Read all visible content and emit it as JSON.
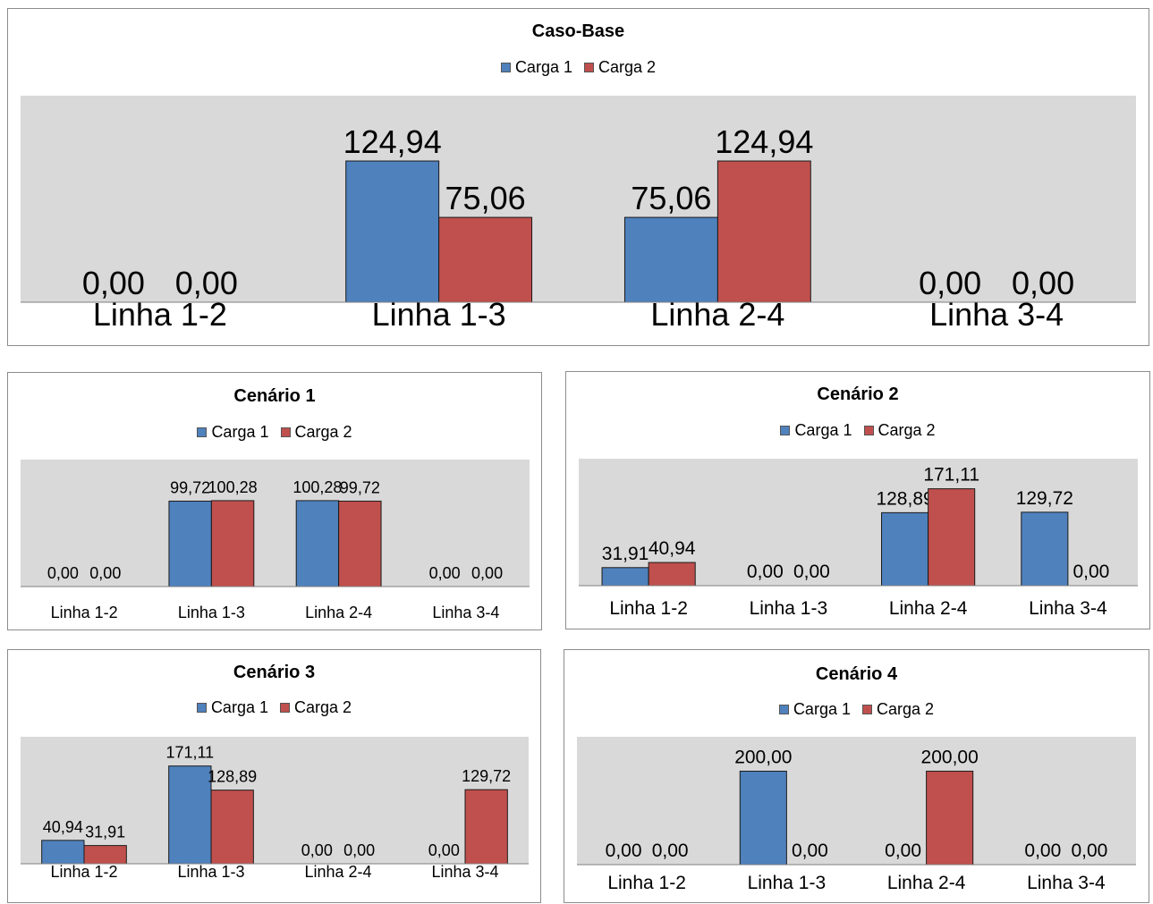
{
  "colors": {
    "carga1": "#4f81bd",
    "carga2": "#c0504d",
    "plot_background": "#d9d9d9",
    "axis": "#7f7f7f"
  },
  "chart_data": [
    {
      "type": "bar",
      "title": "Caso-Base",
      "categories": [
        "Linha 1-2",
        "Linha 1-3",
        "Linha 2-4",
        "Linha 3-4"
      ],
      "series": [
        {
          "name": "Carga 1",
          "values": [
            0.0,
            124.94,
            75.06,
            0.0
          ],
          "labels": [
            "0,00",
            "124,94",
            "75,06",
            "0,00"
          ]
        },
        {
          "name": "Carga 2",
          "values": [
            0.0,
            75.06,
            124.94,
            0.0
          ],
          "labels": [
            "0,00",
            "75,06",
            "124,94",
            "0,00"
          ]
        }
      ],
      "ylim": [
        0,
        140
      ],
      "legend": "top-center",
      "grid": false
    },
    {
      "type": "bar",
      "title": "Cenário 1",
      "categories": [
        "Linha 1-2",
        "Linha 1-3",
        "Linha 2-4",
        "Linha 3-4"
      ],
      "series": [
        {
          "name": "Carga 1",
          "values": [
            0.0,
            99.72,
            100.28,
            0.0
          ],
          "labels": [
            "0,00",
            "99,72",
            "100,28",
            "0,00"
          ]
        },
        {
          "name": "Carga 2",
          "values": [
            0.0,
            100.28,
            99.72,
            0.0
          ],
          "labels": [
            "0,00",
            "100,28",
            "99,72",
            "0,00"
          ]
        }
      ],
      "ylim": [
        0,
        120
      ],
      "legend": "top-center",
      "grid": false
    },
    {
      "type": "bar",
      "title": "Cenário 2",
      "categories": [
        "Linha 1-2",
        "Linha 1-3",
        "Linha 2-4",
        "Linha 3-4"
      ],
      "series": [
        {
          "name": "Carga 1",
          "values": [
            31.91,
            0.0,
            128.89,
            129.72
          ],
          "labels": [
            "31,91",
            "0,00",
            "128,89",
            "129,72"
          ]
        },
        {
          "name": "Carga 2",
          "values": [
            40.94,
            0.0,
            171.11,
            0.0
          ],
          "labels": [
            "40,94",
            "0,00",
            "171,11",
            "0,00"
          ]
        }
      ],
      "ylim": [
        0,
        180
      ],
      "legend": "top-center",
      "grid": false
    },
    {
      "type": "bar",
      "title": "Cenário 3",
      "categories": [
        "Linha 1-2",
        "Linha 1-3",
        "Linha 2-4",
        "Linha 3-4"
      ],
      "series": [
        {
          "name": "Carga 1",
          "values": [
            40.94,
            171.11,
            0.0,
            0.0
          ],
          "labels": [
            "40,94",
            "171,11",
            "0,00",
            "0,00"
          ]
        },
        {
          "name": "Carga 2",
          "values": [
            31.91,
            128.89,
            0.0,
            129.72
          ],
          "labels": [
            "31,91",
            "128,89",
            "0,00",
            "129,72"
          ]
        }
      ],
      "ylim": [
        0,
        180
      ],
      "legend": "top-center",
      "grid": false
    },
    {
      "type": "bar",
      "title": "Cenário 4",
      "categories": [
        "Linha 1-2",
        "Linha 1-3",
        "Linha 2-4",
        "Linha 3-4"
      ],
      "series": [
        {
          "name": "Carga 1",
          "values": [
            0.0,
            200.0,
            0.0,
            0.0
          ],
          "labels": [
            "0,00",
            "200,00",
            "0,00",
            "0,00"
          ]
        },
        {
          "name": "Carga 2",
          "values": [
            0.0,
            0.0,
            200.0,
            0.0
          ],
          "labels": [
            "0,00",
            "0,00",
            "200,00",
            "0,00"
          ]
        }
      ],
      "ylim": [
        0,
        220
      ],
      "legend": "top-center",
      "grid": false
    }
  ]
}
